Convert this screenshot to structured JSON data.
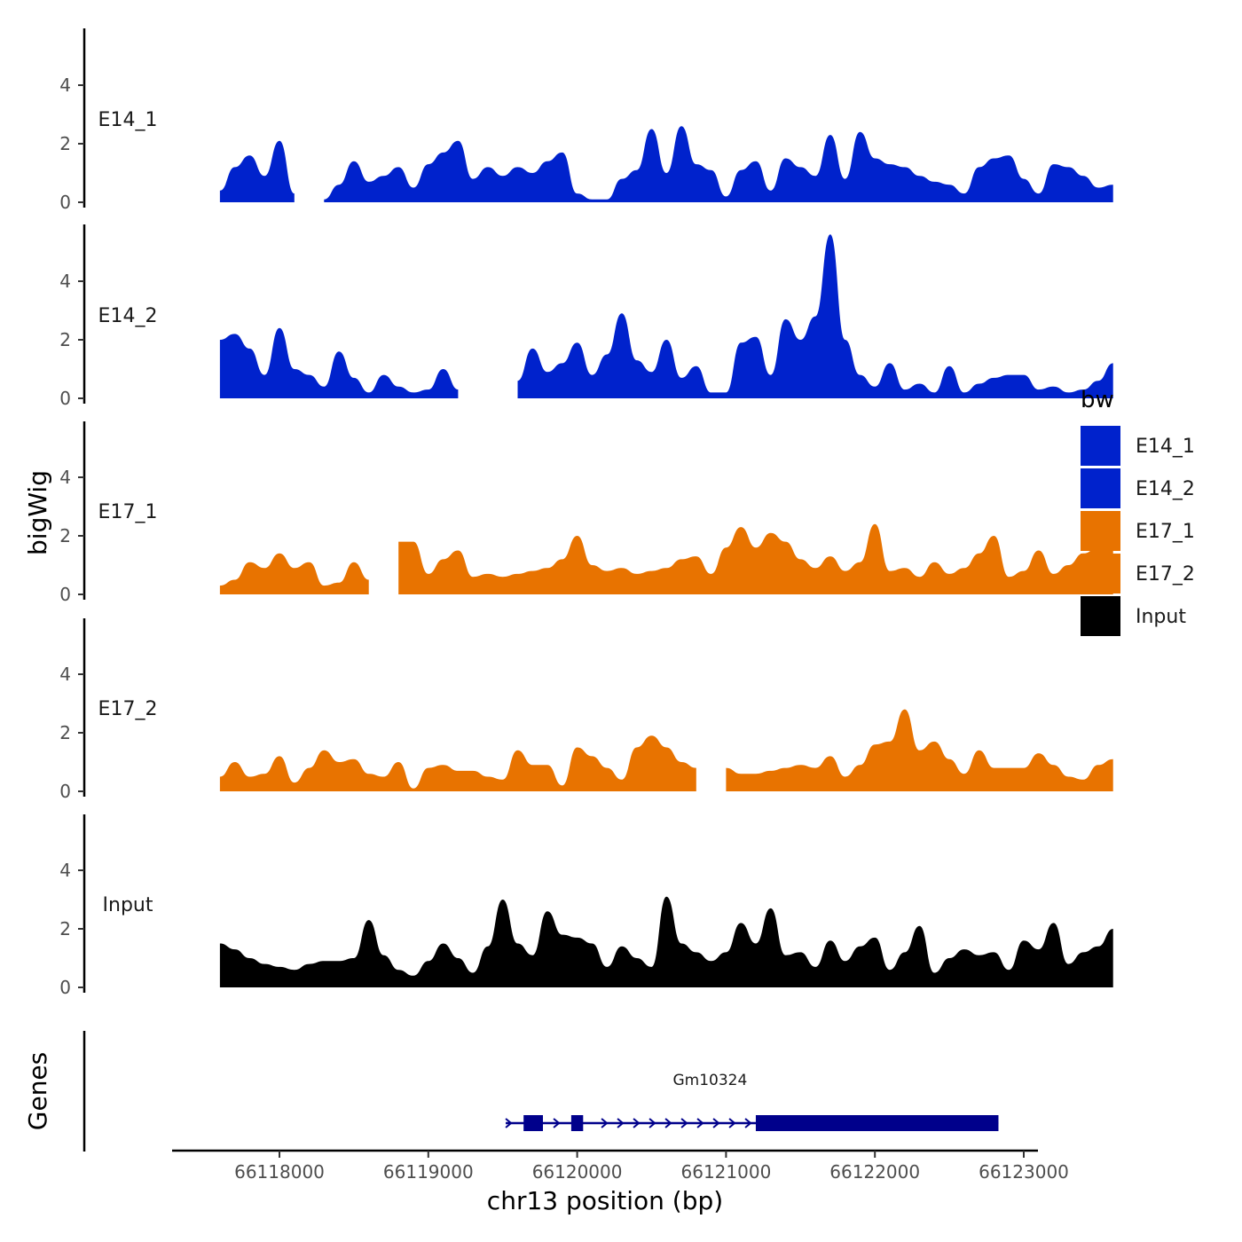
{
  "chart_data": {
    "type": "area",
    "y_axis_title": "bigWig",
    "genes_axis_title": "Genes",
    "x_axis_title": "chr13 position (bp)",
    "x_ticks": [
      66118000,
      66119000,
      66120000,
      66121000,
      66122000,
      66123000
    ],
    "x_tick_labels": [
      "66118000",
      "66119000",
      "66120000",
      "66121000",
      "66122000",
      "66123000"
    ],
    "xlim": [
      66117300,
      66123100
    ],
    "ylim": [
      0,
      6
    ],
    "y_ticks": [
      0,
      2,
      4
    ],
    "y_tick_labels": [
      "0",
      "2",
      "4"
    ],
    "legend": {
      "title": "bw",
      "position": "right",
      "items": [
        {
          "label": "E14_1",
          "color": "#0022CC"
        },
        {
          "label": "E14_2",
          "color": "#0022CC"
        },
        {
          "label": "E17_1",
          "color": "#E87300"
        },
        {
          "label": "E17_2",
          "color": "#E87300"
        },
        {
          "label": "Input",
          "color": "#000000"
        }
      ]
    },
    "series": [
      {
        "name": "E14_1",
        "color": "#0022CC",
        "x_start": 66117600,
        "x_step": 100,
        "values": [
          0.4,
          1.2,
          1.6,
          0.9,
          2.1,
          0.3,
          null,
          0.1,
          0.6,
          1.4,
          0.7,
          0.9,
          1.2,
          0.5,
          1.3,
          1.7,
          2.1,
          0.8,
          1.2,
          0.9,
          1.2,
          1.0,
          1.4,
          1.7,
          0.3,
          0.1,
          0.1,
          0.8,
          1.1,
          2.5,
          1.0,
          2.6,
          1.3,
          1.1,
          0.2,
          1.1,
          1.4,
          0.4,
          1.5,
          1.2,
          0.9,
          2.3,
          0.8,
          2.4,
          1.5,
          1.3,
          1.2,
          0.9,
          0.7,
          0.6,
          0.3,
          1.2,
          1.5,
          1.6,
          0.8,
          0.3,
          1.3,
          1.2,
          0.9,
          0.5,
          0.6
        ]
      },
      {
        "name": "E14_2",
        "color": "#0022CC",
        "x_start": 66117600,
        "x_step": 100,
        "values": [
          2.0,
          2.2,
          1.7,
          0.8,
          2.4,
          1.0,
          0.8,
          0.4,
          1.6,
          0.7,
          0.2,
          0.8,
          0.4,
          0.2,
          0.3,
          1.0,
          0.3,
          null,
          null,
          null,
          0.6,
          1.7,
          0.9,
          1.2,
          1.9,
          0.8,
          1.5,
          2.9,
          1.3,
          0.9,
          2.0,
          0.7,
          1.1,
          0.2,
          0.2,
          1.9,
          2.1,
          0.8,
          2.7,
          2.0,
          2.8,
          5.6,
          2.0,
          0.8,
          0.4,
          1.2,
          0.3,
          0.5,
          0.2,
          1.1,
          0.2,
          0.5,
          0.7,
          0.8,
          0.8,
          0.3,
          0.4,
          0.2,
          0.3,
          0.6,
          1.2
        ]
      },
      {
        "name": "E17_1",
        "color": "#E87300",
        "x_start": 66117600,
        "x_step": 100,
        "values": [
          0.3,
          0.5,
          1.1,
          0.9,
          1.4,
          0.9,
          1.1,
          0.3,
          0.4,
          1.1,
          0.5,
          null,
          1.8,
          1.8,
          0.7,
          1.2,
          1.5,
          0.6,
          0.7,
          0.6,
          0.7,
          0.8,
          0.9,
          1.2,
          2.0,
          1.0,
          0.8,
          0.9,
          0.7,
          0.8,
          0.9,
          1.2,
          1.3,
          0.7,
          1.6,
          2.3,
          1.6,
          2.1,
          1.8,
          1.2,
          0.9,
          1.3,
          0.8,
          1.1,
          2.4,
          0.8,
          0.9,
          0.6,
          1.1,
          0.7,
          0.9,
          1.4,
          2.0,
          0.6,
          0.8,
          1.5,
          0.7,
          1.0,
          1.4,
          1.6,
          1.8
        ]
      },
      {
        "name": "E17_2",
        "color": "#E87300",
        "x_start": 66117600,
        "x_step": 100,
        "values": [
          0.5,
          1.0,
          0.5,
          0.6,
          1.2,
          0.3,
          0.8,
          1.4,
          1.0,
          1.1,
          0.6,
          0.5,
          1.0,
          0.1,
          0.8,
          0.9,
          0.7,
          0.7,
          0.5,
          0.4,
          1.4,
          0.9,
          0.9,
          0.2,
          1.5,
          1.2,
          0.8,
          0.4,
          1.5,
          1.9,
          1.5,
          1.0,
          0.8,
          null,
          0.8,
          0.6,
          0.6,
          0.7,
          0.8,
          0.9,
          0.8,
          1.2,
          0.5,
          0.9,
          1.6,
          1.7,
          2.8,
          1.4,
          1.7,
          1.1,
          0.6,
          1.4,
          0.8,
          0.8,
          0.8,
          1.3,
          0.9,
          0.5,
          0.4,
          0.9,
          1.1
        ]
      },
      {
        "name": "Input",
        "color": "#000000",
        "x_start": 66117600,
        "x_step": 100,
        "values": [
          1.5,
          1.3,
          1.0,
          0.8,
          0.7,
          0.6,
          0.8,
          0.9,
          0.9,
          1.0,
          2.3,
          1.1,
          0.6,
          0.4,
          0.9,
          1.5,
          1.0,
          0.5,
          1.4,
          3.0,
          1.5,
          1.1,
          2.6,
          1.8,
          1.7,
          1.5,
          0.7,
          1.4,
          1.0,
          0.7,
          3.1,
          1.5,
          1.2,
          0.9,
          1.2,
          2.2,
          1.5,
          2.7,
          1.1,
          1.2,
          0.7,
          1.6,
          0.9,
          1.4,
          1.7,
          0.6,
          1.2,
          2.1,
          0.5,
          1.0,
          1.3,
          1.1,
          1.2,
          0.6,
          1.6,
          1.3,
          2.2,
          0.8,
          1.2,
          1.4,
          2.0
        ]
      }
    ],
    "gene": {
      "name": "Gm10324",
      "strand": "+",
      "start": 66119520,
      "end": 66122830,
      "color": "#00008B",
      "exons": [
        [
          66119640,
          66119770
        ],
        [
          66119960,
          66120040
        ],
        [
          66121200,
          66122830
        ]
      ]
    }
  }
}
